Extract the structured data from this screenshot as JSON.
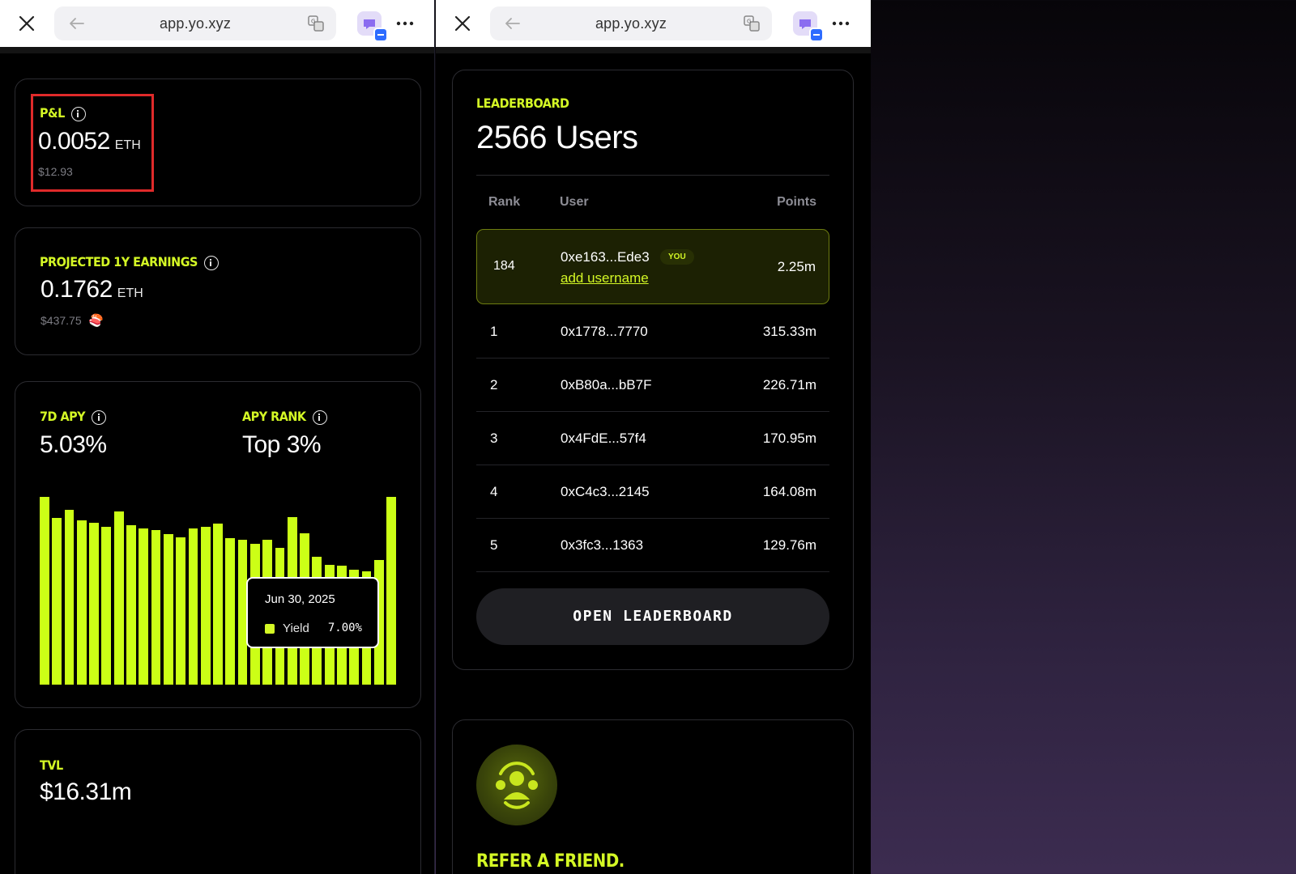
{
  "browser": {
    "url": "app.yo.xyz"
  },
  "left": {
    "pnl": {
      "label": "P&L",
      "value": "0.0052",
      "unit": "ETH",
      "usd": "$12.93"
    },
    "projected": {
      "label": "PROJECTED 1Y EARNINGS",
      "value": "0.1762",
      "unit": "ETH",
      "usd": "$437.75",
      "emoji": "🍣"
    },
    "apy": {
      "label": "7D APY",
      "value": "5.03%"
    },
    "apy_rank": {
      "label": "APY RANK",
      "value": "Top 3%"
    },
    "tooltip": {
      "date": "Jun 30, 2025",
      "series": "Yield",
      "value": "7.00%"
    },
    "tvl": {
      "label": "TVL",
      "value": "$16.31m"
    }
  },
  "chart_data": {
    "type": "bar",
    "series": [
      {
        "name": "Yield",
        "values": [
          7.0,
          6.22,
          6.52,
          6.13,
          6.05,
          5.89,
          6.47,
          5.93,
          5.81,
          5.76,
          5.61,
          5.48,
          5.83,
          5.88,
          6.0,
          5.47,
          5.4,
          5.25,
          5.4,
          5.1,
          6.25,
          5.63,
          4.78,
          4.48,
          4.44,
          4.3,
          4.21,
          4.64,
          7.0
        ]
      }
    ],
    "ylim": [
      0,
      7.0
    ],
    "grid": false,
    "color": "#ccff16"
  },
  "right": {
    "leaderboard": {
      "label": "LEADERBOARD",
      "title": "2566 Users",
      "columns": [
        "Rank",
        "User",
        "Points"
      ],
      "you": {
        "rank": "184",
        "user": "0xe163...Ede3",
        "badge": "YOU",
        "action": "add username",
        "points": "2.25m"
      },
      "rows": [
        {
          "rank": "1",
          "user": "0x1778...7770",
          "points": "315.33m"
        },
        {
          "rank": "2",
          "user": "0xB80a...bB7F",
          "points": "226.71m"
        },
        {
          "rank": "3",
          "user": "0x4FdE...57f4",
          "points": "170.95m"
        },
        {
          "rank": "4",
          "user": "0xC4c3...2145",
          "points": "164.08m"
        },
        {
          "rank": "5",
          "user": "0x3fc3...1363",
          "points": "129.76m"
        }
      ],
      "button": "OPEN LEADERBOARD"
    },
    "refer": {
      "title": "REFER A FRIEND."
    }
  },
  "colors": {
    "accent": "#d4f825",
    "bar": "#ccff16",
    "highlight": "#e02a2a",
    "background": "#000000"
  },
  "icons": [
    "close-icon",
    "back-arrow-icon",
    "translate-icon",
    "extension-icon",
    "more-icon",
    "info-icon",
    "refer-friends-icon"
  ]
}
